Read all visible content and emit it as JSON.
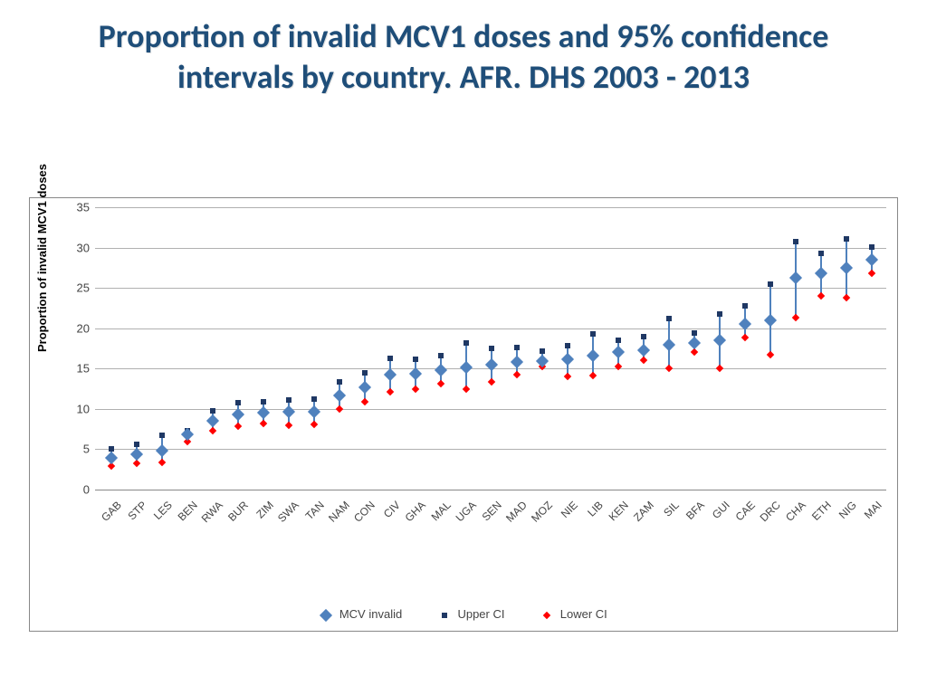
{
  "title": "Proportion of  invalid MCV1 doses and 95% confidence intervals by country. AFR. DHS 2003 - 2013",
  "chart": {
    "type": "scatter-ci",
    "y_axis_title": "Proportion of invalid MCV1 doses",
    "ylim": [
      0,
      35
    ],
    "ytick_step": 5,
    "grid_color": "#b0b0b0",
    "background_color": "#ffffff",
    "colors": {
      "mcv": "#4f81bd",
      "upper": "#1f3864",
      "lower": "#ff0000",
      "line": "#4f81bd"
    },
    "categories": [
      "GAB",
      "STP",
      "LES",
      "BEN",
      "RWA",
      "BUR",
      "ZIM",
      "SWA",
      "TAN",
      "NAM",
      "CON",
      "CIV",
      "GHA",
      "MAL",
      "UGA",
      "SEN",
      "MAD",
      "MOZ",
      "NIE",
      "LIB",
      "KEN",
      "ZAM",
      "SIL",
      "BFA",
      "GUI",
      "CAE",
      "DRC",
      "CHA",
      "ETH",
      "NIG",
      "MAI"
    ],
    "mcv": [
      3.9,
      4.4,
      4.8,
      6.8,
      8.5,
      9.3,
      9.5,
      9.6,
      9.6,
      11.7,
      12.7,
      14.3,
      14.4,
      14.8,
      15.2,
      15.5,
      15.8,
      15.9,
      16.2,
      16.6,
      17.0,
      17.3,
      18.0,
      18.2,
      18.5,
      20.5,
      21.0,
      26.2,
      26.8,
      27.5,
      28.5
    ],
    "upper": [
      5.0,
      5.6,
      6.7,
      7.3,
      9.8,
      10.8,
      10.9,
      11.1,
      11.2,
      13.3,
      14.5,
      16.3,
      16.2,
      16.6,
      18.2,
      17.5,
      17.6,
      17.2,
      17.8,
      19.3,
      18.5,
      19.0,
      21.2,
      19.4,
      21.8,
      22.8,
      25.5,
      30.7,
      29.3,
      31.1,
      30.1
    ],
    "lower": [
      2.9,
      3.3,
      3.4,
      5.9,
      7.3,
      7.8,
      8.2,
      8.0,
      8.1,
      10.0,
      10.9,
      12.1,
      12.4,
      13.1,
      12.4,
      13.3,
      14.3,
      15.3,
      14.0,
      14.1,
      15.3,
      16.0,
      15.0,
      17.1,
      15.0,
      18.8,
      16.7,
      21.3,
      24.0,
      23.8,
      26.8
    ]
  },
  "legend": {
    "mcv": "MCV invalid",
    "upper": "Upper CI",
    "lower": "Lower CI"
  }
}
